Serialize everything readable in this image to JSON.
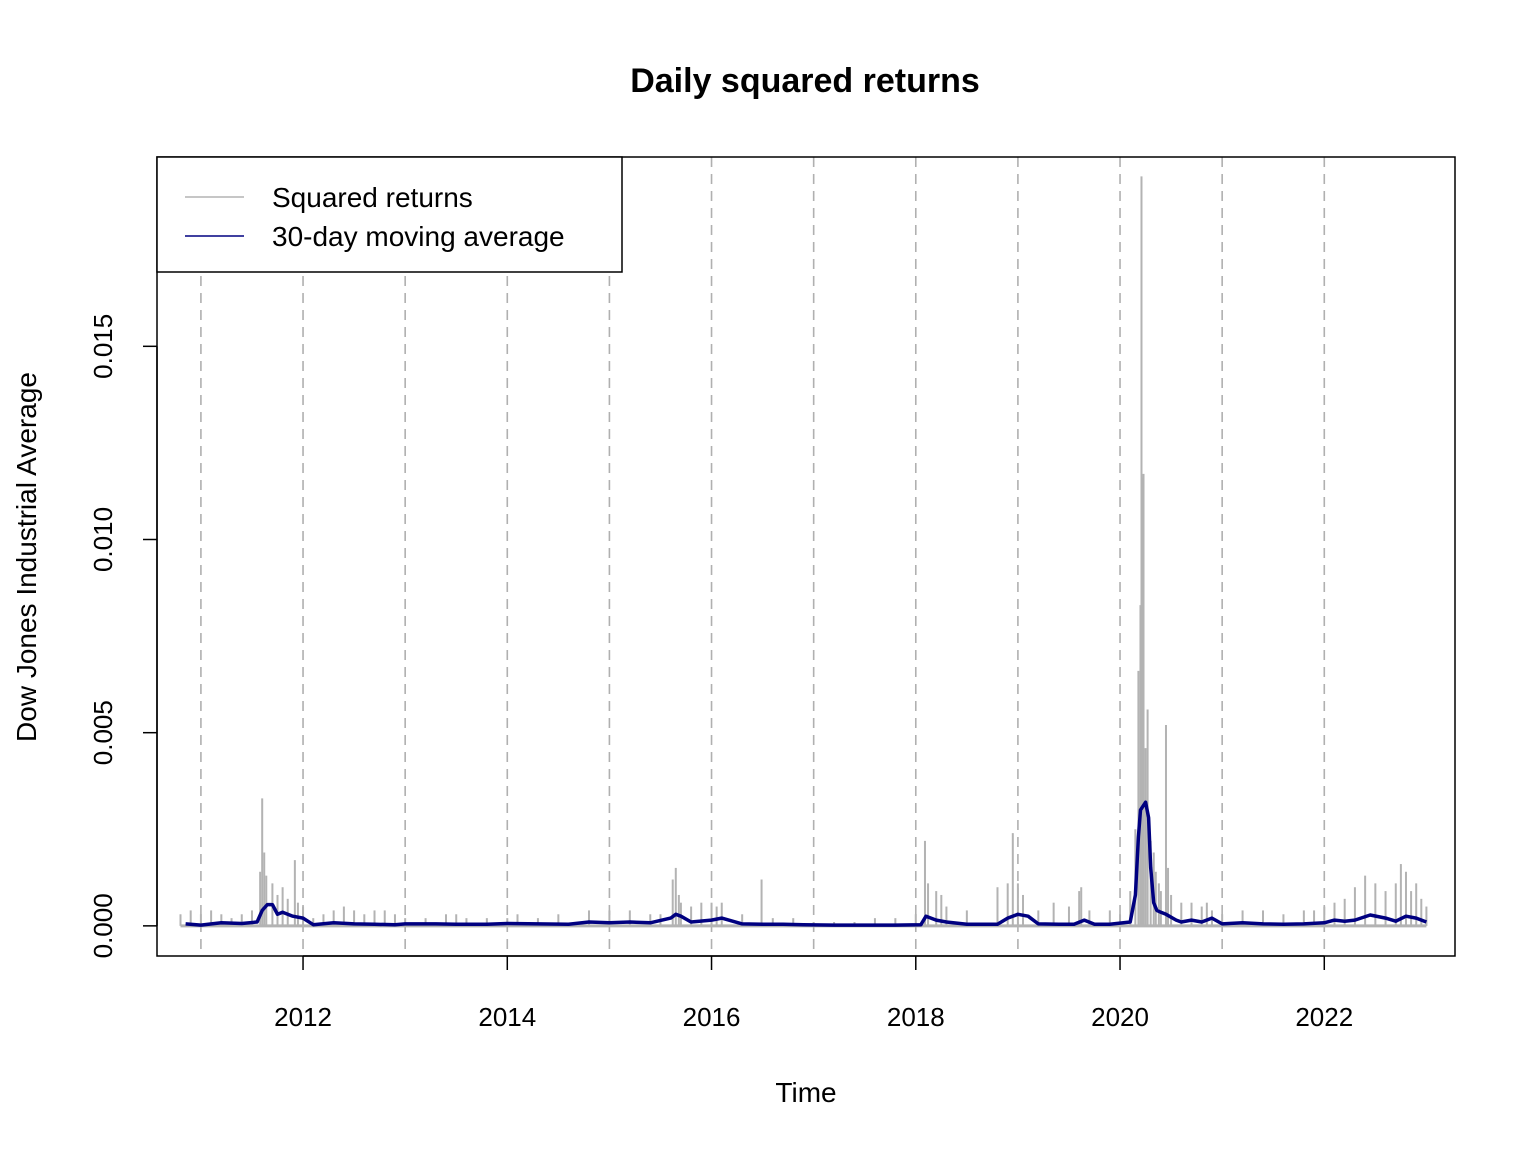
{
  "chart_data": {
    "type": "line",
    "title": "Daily squared returns",
    "xlabel": "Time",
    "ylabel": "Dow Jones Industrial Average",
    "xlim": [
      2010.57,
      2023.28
    ],
    "ylim": [
      -0.00078,
      0.0199
    ],
    "x_ticks": [
      2012,
      2014,
      2016,
      2018,
      2020,
      2022
    ],
    "x_tick_labels": [
      "2012",
      "2014",
      "2016",
      "2018",
      "2020",
      "2022"
    ],
    "y_ticks": [
      0.0,
      0.005,
      0.01,
      0.015
    ],
    "y_tick_labels": [
      "0.000",
      "0.005",
      "0.010",
      "0.015"
    ],
    "vertical_reference_lines": [
      2011,
      2012,
      2013,
      2014,
      2015,
      2016,
      2017,
      2018,
      2019,
      2020,
      2021,
      2022
    ],
    "grid": "vertical dashed lines at each year",
    "legend_position": "top-left",
    "series": [
      {
        "name": "Squared returns",
        "color": "#b3b3b3",
        "style": "spikes",
        "x": [
          2010.8,
          2010.9,
          2011.0,
          2011.1,
          2011.2,
          2011.3,
          2011.4,
          2011.5,
          2011.58,
          2011.6,
          2011.62,
          2011.64,
          2011.7,
          2011.75,
          2011.8,
          2011.85,
          2011.92,
          2011.95,
          2012.0,
          2012.1,
          2012.2,
          2012.3,
          2012.4,
          2012.5,
          2012.6,
          2012.7,
          2012.8,
          2012.9,
          2013.0,
          2013.2,
          2013.4,
          2013.5,
          2013.6,
          2013.8,
          2014.0,
          2014.1,
          2014.3,
          2014.5,
          2014.8,
          2015.0,
          2015.2,
          2015.4,
          2015.5,
          2015.62,
          2015.65,
          2015.68,
          2015.7,
          2015.8,
          2015.9,
          2016.0,
          2016.05,
          2016.1,
          2016.3,
          2016.49,
          2016.6,
          2016.8,
          2017.0,
          2017.2,
          2017.4,
          2017.6,
          2017.8,
          2018.0,
          2018.09,
          2018.12,
          2018.2,
          2018.25,
          2018.3,
          2018.5,
          2018.8,
          2018.9,
          2018.95,
          2019.0,
          2019.05,
          2019.2,
          2019.35,
          2019.5,
          2019.6,
          2019.62,
          2019.7,
          2019.9,
          2020.0,
          2020.1,
          2020.15,
          2020.18,
          2020.2,
          2020.21,
          2020.22,
          2020.23,
          2020.25,
          2020.27,
          2020.3,
          2020.33,
          2020.35,
          2020.38,
          2020.4,
          2020.45,
          2020.47,
          2020.5,
          2020.6,
          2020.7,
          2020.8,
          2020.85,
          2020.9,
          2021.0,
          2021.2,
          2021.4,
          2021.6,
          2021.8,
          2021.9,
          2022.0,
          2022.1,
          2022.2,
          2022.3,
          2022.4,
          2022.5,
          2022.6,
          2022.7,
          2022.75,
          2022.8,
          2022.85,
          2022.9,
          2022.95,
          2023.0
        ],
        "values": [
          0.0003,
          0.0004,
          0.0003,
          0.0004,
          0.0003,
          0.0002,
          0.0003,
          0.0004,
          0.0014,
          0.0033,
          0.0019,
          0.0013,
          0.0011,
          0.0008,
          0.001,
          0.0007,
          0.0017,
          0.0006,
          0.0005,
          0.0002,
          0.0003,
          0.0004,
          0.0005,
          0.0004,
          0.0003,
          0.0004,
          0.0004,
          0.0003,
          0.0002,
          0.0002,
          0.0003,
          0.0003,
          0.0002,
          0.0002,
          0.0002,
          0.0003,
          0.0002,
          0.0003,
          0.0004,
          0.0004,
          0.0004,
          0.0003,
          0.0003,
          0.0012,
          0.0015,
          0.0008,
          0.0006,
          0.0005,
          0.0006,
          0.0006,
          0.0005,
          0.0006,
          0.0003,
          0.0012,
          0.0002,
          0.0002,
          0.0001,
          0.0001,
          0.0001,
          0.0002,
          0.0002,
          0.0003,
          0.0022,
          0.0011,
          0.0009,
          0.0008,
          0.0005,
          0.0004,
          0.001,
          0.0011,
          0.0024,
          0.0011,
          0.0008,
          0.0004,
          0.0006,
          0.0005,
          0.0009,
          0.001,
          0.0004,
          0.0004,
          0.0003,
          0.0009,
          0.0025,
          0.0066,
          0.0083,
          0.0194,
          0.0116,
          0.0117,
          0.0046,
          0.0056,
          0.0022,
          0.0019,
          0.0014,
          0.0011,
          0.0009,
          0.0052,
          0.0015,
          0.0008,
          0.0006,
          0.0006,
          0.0005,
          0.0006,
          0.0004,
          0.0003,
          0.0004,
          0.0004,
          0.0003,
          0.0004,
          0.0004,
          0.0005,
          0.0006,
          0.0007,
          0.001,
          0.0013,
          0.0011,
          0.0009,
          0.0011,
          0.0016,
          0.0014,
          0.0009,
          0.0011,
          0.0007,
          0.0005
        ]
      },
      {
        "name": "30-day moving average",
        "color": "#000080",
        "style": "line",
        "x": [
          2010.85,
          2011.0,
          2011.2,
          2011.4,
          2011.55,
          2011.6,
          2011.65,
          2011.7,
          2011.75,
          2011.8,
          2011.9,
          2012.0,
          2012.1,
          2012.3,
          2012.5,
          2012.7,
          2012.9,
          2013.0,
          2013.3,
          2013.5,
          2013.8,
          2014.0,
          2014.3,
          2014.6,
          2014.8,
          2015.0,
          2015.2,
          2015.4,
          2015.6,
          2015.65,
          2015.7,
          2015.8,
          2016.0,
          2016.1,
          2016.3,
          2016.5,
          2016.7,
          2016.9,
          2017.2,
          2017.5,
          2017.8,
          2018.05,
          2018.1,
          2018.2,
          2018.3,
          2018.5,
          2018.8,
          2018.9,
          2019.0,
          2019.1,
          2019.2,
          2019.4,
          2019.55,
          2019.65,
          2019.75,
          2019.9,
          2020.1,
          2020.15,
          2020.18,
          2020.2,
          2020.25,
          2020.28,
          2020.3,
          2020.33,
          2020.36,
          2020.4,
          2020.45,
          2020.55,
          2020.6,
          2020.7,
          2020.8,
          2020.9,
          2021.0,
          2021.2,
          2021.4,
          2021.6,
          2021.8,
          2022.0,
          2022.1,
          2022.2,
          2022.3,
          2022.45,
          2022.6,
          2022.7,
          2022.8,
          2022.9,
          2023.0
        ],
        "values": [
          5e-05,
          2e-05,
          8e-05,
          6e-05,
          0.0001,
          0.0004,
          0.00055,
          0.00055,
          0.0003,
          0.00035,
          0.00025,
          0.0002,
          3e-05,
          8e-05,
          5e-05,
          4e-05,
          3e-05,
          5e-05,
          5e-05,
          4e-05,
          4e-05,
          6e-05,
          5e-05,
          4e-05,
          0.0001,
          8e-05,
          0.0001,
          8e-05,
          0.0002,
          0.0003,
          0.00025,
          0.0001,
          0.00015,
          0.0002,
          5e-05,
          4e-05,
          4e-05,
          3e-05,
          2e-05,
          2e-05,
          2e-05,
          3e-05,
          0.00025,
          0.00015,
          0.0001,
          4e-05,
          4e-05,
          0.0002,
          0.0003,
          0.00025,
          5e-05,
          4e-05,
          4e-05,
          0.00015,
          4e-05,
          4e-05,
          0.0001,
          0.0008,
          0.0023,
          0.003,
          0.0032,
          0.0028,
          0.0015,
          0.0006,
          0.0004,
          0.00035,
          0.0003,
          0.00015,
          0.0001,
          0.00015,
          0.0001,
          0.0002,
          5e-05,
          8e-05,
          5e-05,
          4e-05,
          5e-05,
          8e-05,
          0.00015,
          0.00012,
          0.00015,
          0.00028,
          0.0002,
          0.00012,
          0.00025,
          0.0002,
          0.0001
        ]
      }
    ]
  }
}
